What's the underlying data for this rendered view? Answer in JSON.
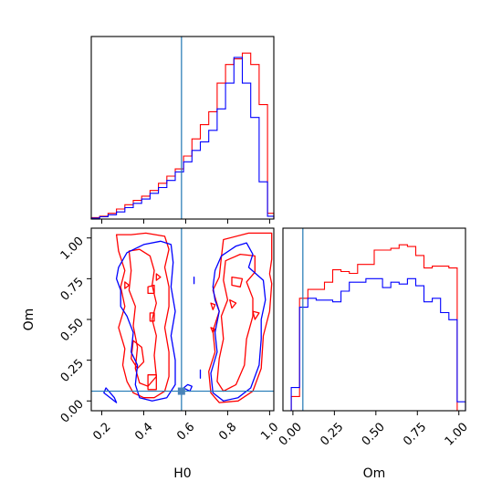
{
  "chart_data": [
    {
      "type": "histogram",
      "panel": "H0 marginal",
      "xlim": [
        0.15,
        1.02
      ],
      "bins": [
        0.15,
        0.19,
        0.23,
        0.27,
        0.31,
        0.35,
        0.39,
        0.43,
        0.47,
        0.51,
        0.55,
        0.59,
        0.63,
        0.67,
        0.71,
        0.75,
        0.79,
        0.83,
        0.87,
        0.91,
        0.95,
        0.99,
        1.02
      ],
      "series": [
        {
          "color": "#ff0000",
          "values": [
            0.5,
            1.0,
            2.0,
            3.5,
            5.0,
            6.5,
            8.0,
            10.0,
            12.5,
            15.0,
            17.5,
            22.0,
            28.0,
            33.0,
            37.5,
            47.5,
            54.0,
            56.0,
            58.0,
            54.0,
            40.0,
            2.0
          ]
        },
        {
          "color": "#0000ff",
          "values": [
            0.3,
            0.8,
            1.5,
            2.5,
            4.0,
            5.5,
            7.0,
            9.0,
            11.0,
            13.5,
            16.5,
            20.0,
            24.0,
            27.0,
            31.0,
            38.5,
            47.5,
            56.5,
            47.5,
            35.5,
            13.0,
            1.0
          ]
        }
      ],
      "truth": 0.58,
      "truth_color": "#1f77b4"
    },
    {
      "type": "contour",
      "panel": "H0 vs Om joint",
      "xlabel": "H0",
      "ylabel": "Om",
      "xlim": [
        0.15,
        1.02
      ],
      "ylim": [
        -0.06,
        1.06
      ],
      "xticks": [
        "0.2",
        "0.4",
        "0.6",
        "0.8",
        "1.0"
      ],
      "yticks": [
        "0.00",
        "0.25",
        "0.50",
        "0.75",
        "1.00"
      ],
      "truth": {
        "x": 0.58,
        "y": 0.06
      },
      "series": [
        {
          "color": "#ff0000",
          "contours": [
            [
              [
                0.27,
                1.02
              ],
              [
                0.34,
                1.02
              ],
              [
                0.41,
                1.03
              ],
              [
                0.5,
                1.01
              ],
              [
                0.52,
                0.93
              ],
              [
                0.5,
                0.82
              ],
              [
                0.52,
                0.7
              ],
              [
                0.52,
                0.58
              ],
              [
                0.5,
                0.45
              ],
              [
                0.52,
                0.3
              ],
              [
                0.52,
                0.15
              ],
              [
                0.5,
                0.06
              ],
              [
                0.45,
                0.02
              ],
              [
                0.4,
                0.02
              ],
              [
                0.35,
                0.05
              ],
              [
                0.32,
                0.12
              ],
              [
                0.3,
                0.22
              ],
              [
                0.31,
                0.32
              ],
              [
                0.28,
                0.45
              ],
              [
                0.31,
                0.58
              ],
              [
                0.29,
                0.7
              ],
              [
                0.31,
                0.8
              ],
              [
                0.28,
                0.92
              ],
              [
                0.27,
                1.02
              ]
            ],
            [
              [
                0.33,
                0.92
              ],
              [
                0.38,
                0.93
              ],
              [
                0.43,
                0.89
              ],
              [
                0.45,
                0.8
              ],
              [
                0.44,
                0.71
              ],
              [
                0.46,
                0.6
              ],
              [
                0.44,
                0.5
              ],
              [
                0.46,
                0.4
              ],
              [
                0.45,
                0.28
              ],
              [
                0.46,
                0.15
              ],
              [
                0.42,
                0.09
              ],
              [
                0.38,
                0.11
              ],
              [
                0.36,
                0.2
              ],
              [
                0.37,
                0.33
              ],
              [
                0.35,
                0.46
              ],
              [
                0.36,
                0.58
              ],
              [
                0.33,
                0.68
              ],
              [
                0.34,
                0.8
              ],
              [
                0.33,
                0.92
              ]
            ],
            [
              [
                0.35,
                0.37
              ],
              [
                0.39,
                0.33
              ],
              [
                0.4,
                0.24
              ],
              [
                0.37,
                0.2
              ],
              [
                0.34,
                0.26
              ],
              [
                0.35,
                0.37
              ]
            ],
            [
              [
                0.31,
                0.73
              ],
              [
                0.33,
                0.71
              ],
              [
                0.31,
                0.69
              ],
              [
                0.31,
                0.73
              ]
            ],
            [
              [
                0.42,
                0.7
              ],
              [
                0.45,
                0.71
              ],
              [
                0.45,
                0.66
              ],
              [
                0.42,
                0.66
              ],
              [
                0.42,
                0.7
              ]
            ],
            [
              [
                0.43,
                0.54
              ],
              [
                0.45,
                0.54
              ],
              [
                0.45,
                0.49
              ],
              [
                0.43,
                0.49
              ],
              [
                0.43,
                0.54
              ]
            ],
            [
              [
                0.46,
                0.78
              ],
              [
                0.48,
                0.76
              ],
              [
                0.46,
                0.74
              ],
              [
                0.46,
                0.78
              ]
            ],
            [
              [
                0.42,
                0.16
              ],
              [
                0.46,
                0.16
              ],
              [
                0.46,
                0.07
              ],
              [
                0.42,
                0.07
              ],
              [
                0.42,
                0.16
              ]
            ],
            [
              [
                0.78,
                0.99
              ],
              [
                0.9,
                1.03
              ],
              [
                1.01,
                1.03
              ],
              [
                1.01,
                0.87
              ],
              [
                1.0,
                0.78
              ],
              [
                1.01,
                0.72
              ],
              [
                1.0,
                0.55
              ],
              [
                0.97,
                0.4
              ],
              [
                0.96,
                0.2
              ],
              [
                0.92,
                0.06
              ],
              [
                0.85,
                0.0
              ],
              [
                0.76,
                -0.01
              ],
              [
                0.72,
                0.05
              ],
              [
                0.71,
                0.18
              ],
              [
                0.74,
                0.3
              ],
              [
                0.73,
                0.43
              ],
              [
                0.76,
                0.55
              ],
              [
                0.73,
                0.68
              ],
              [
                0.76,
                0.76
              ],
              [
                0.77,
                0.88
              ],
              [
                0.78,
                0.99
              ]
            ],
            [
              [
                0.79,
                0.86
              ],
              [
                0.86,
                0.9
              ],
              [
                0.93,
                0.89
              ],
              [
                0.93,
                0.79
              ],
              [
                0.89,
                0.73
              ],
              [
                0.92,
                0.63
              ],
              [
                0.92,
                0.52
              ],
              [
                0.89,
                0.38
              ],
              [
                0.88,
                0.22
              ],
              [
                0.84,
                0.1
              ],
              [
                0.78,
                0.06
              ],
              [
                0.75,
                0.12
              ],
              [
                0.76,
                0.26
              ],
              [
                0.78,
                0.38
              ],
              [
                0.77,
                0.52
              ],
              [
                0.8,
                0.62
              ],
              [
                0.78,
                0.74
              ],
              [
                0.79,
                0.86
              ]
            ],
            [
              [
                0.82,
                0.76
              ],
              [
                0.87,
                0.75
              ],
              [
                0.86,
                0.7
              ],
              [
                0.82,
                0.71
              ],
              [
                0.82,
                0.76
              ]
            ],
            [
              [
                0.81,
                0.62
              ],
              [
                0.84,
                0.6
              ],
              [
                0.82,
                0.57
              ],
              [
                0.81,
                0.62
              ]
            ],
            [
              [
                0.72,
                0.6
              ],
              [
                0.74,
                0.59
              ],
              [
                0.73,
                0.56
              ],
              [
                0.72,
                0.6
              ]
            ],
            [
              [
                0.72,
                0.45
              ],
              [
                0.74,
                0.44
              ],
              [
                0.73,
                0.42
              ],
              [
                0.72,
                0.45
              ]
            ],
            [
              [
                0.92,
                0.55
              ],
              [
                0.95,
                0.54
              ],
              [
                0.93,
                0.5
              ],
              [
                0.92,
                0.55
              ]
            ]
          ]
        },
        {
          "color": "#0000ff",
          "contours": [
            [
              [
                0.32,
                0.91
              ],
              [
                0.4,
                0.96
              ],
              [
                0.48,
                0.98
              ],
              [
                0.53,
                0.96
              ],
              [
                0.54,
                0.85
              ],
              [
                0.53,
                0.7
              ],
              [
                0.55,
                0.55
              ],
              [
                0.53,
                0.4
              ],
              [
                0.55,
                0.25
              ],
              [
                0.55,
                0.1
              ],
              [
                0.51,
                0.02
              ],
              [
                0.44,
                0.0
              ],
              [
                0.38,
                0.02
              ],
              [
                0.36,
                0.1
              ],
              [
                0.37,
                0.22
              ],
              [
                0.34,
                0.3
              ],
              [
                0.35,
                0.42
              ],
              [
                0.32,
                0.52
              ],
              [
                0.29,
                0.58
              ],
              [
                0.29,
                0.68
              ],
              [
                0.27,
                0.75
              ],
              [
                0.28,
                0.82
              ],
              [
                0.32,
                0.91
              ]
            ],
            [
              [
                0.22,
                0.08
              ],
              [
                0.26,
                0.02
              ],
              [
                0.27,
                -0.01
              ],
              [
                0.24,
                0.02
              ],
              [
                0.21,
                0.05
              ],
              [
                0.22,
                0.08
              ]
            ],
            [
              [
                0.59,
                0.08
              ],
              [
                0.61,
                0.1
              ],
              [
                0.63,
                0.09
              ],
              [
                0.62,
                0.06
              ],
              [
                0.59,
                0.08
              ]
            ],
            [
              [
                0.67,
                0.14
              ],
              [
                0.67,
                0.19
              ],
              [
                0.67,
                0.14
              ]
            ],
            [
              [
                0.64,
                0.72
              ],
              [
                0.64,
                0.76
              ],
              [
                0.64,
                0.72
              ]
            ],
            [
              [
                0.77,
                0.89
              ],
              [
                0.84,
                0.95
              ],
              [
                0.89,
                0.97
              ],
              [
                0.92,
                0.9
              ],
              [
                0.9,
                0.82
              ],
              [
                0.97,
                0.74
              ],
              [
                0.98,
                0.62
              ],
              [
                0.96,
                0.5
              ],
              [
                0.96,
                0.38
              ],
              [
                0.95,
                0.22
              ],
              [
                0.91,
                0.08
              ],
              [
                0.85,
                0.02
              ],
              [
                0.78,
                0.0
              ],
              [
                0.73,
                0.05
              ],
              [
                0.72,
                0.17
              ],
              [
                0.75,
                0.3
              ],
              [
                0.74,
                0.42
              ],
              [
                0.76,
                0.55
              ],
              [
                0.74,
                0.62
              ],
              [
                0.73,
                0.7
              ],
              [
                0.74,
                0.8
              ],
              [
                0.77,
                0.89
              ]
            ]
          ]
        }
      ]
    },
    {
      "type": "histogram",
      "panel": "Om marginal",
      "xlabel": "Om",
      "xlim": [
        -0.06,
        1.04
      ],
      "xticks": [
        "0.00",
        "0.25",
        "0.50",
        "0.75",
        "1.00"
      ],
      "bins": [
        -0.06,
        -0.01,
        0.04,
        0.09,
        0.14,
        0.19,
        0.24,
        0.29,
        0.34,
        0.39,
        0.44,
        0.49,
        0.54,
        0.59,
        0.64,
        0.69,
        0.74,
        0.79,
        0.84,
        0.89,
        0.94,
        0.99,
        1.04
      ],
      "series": [
        {
          "color": "#ff0000",
          "values": [
            0,
            8,
            63,
            68,
            68,
            72,
            79,
            78,
            77,
            82,
            82,
            90,
            90,
            91,
            93,
            92,
            87,
            80,
            81,
            81,
            80,
            0
          ]
        },
        {
          "color": "#0000ff",
          "values": [
            0,
            13,
            58,
            63,
            62,
            62,
            61,
            67,
            72,
            72,
            74,
            74,
            69,
            72,
            71,
            74,
            70,
            61,
            63,
            55,
            51,
            5
          ]
        }
      ],
      "truth": 0.06,
      "truth_color": "#1f77b4"
    }
  ]
}
